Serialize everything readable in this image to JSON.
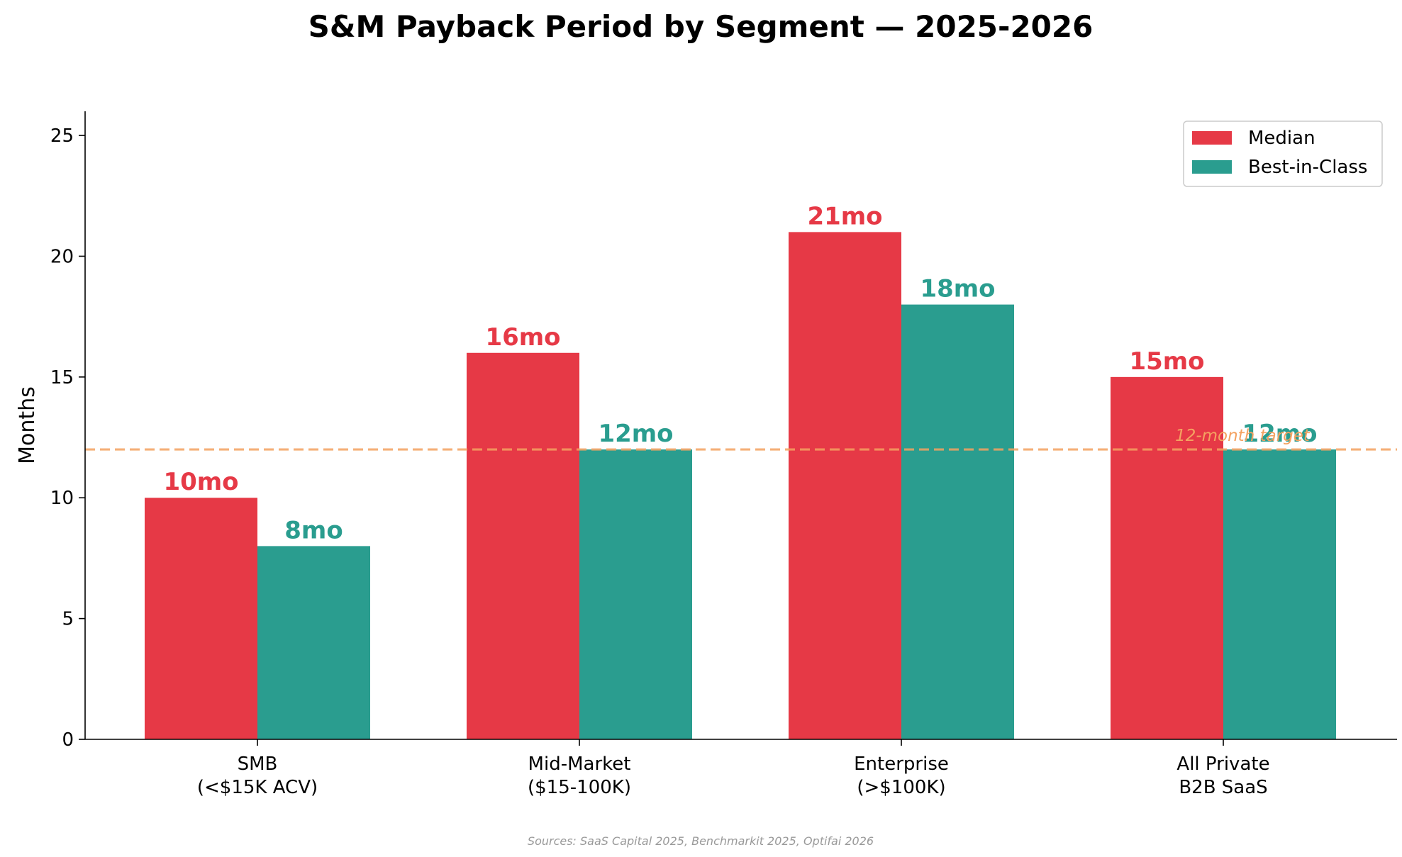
{
  "chart_data": {
    "type": "bar",
    "title": "S&M Payback Period by Segment — 2025-2026",
    "xlabel": "",
    "ylabel": "Months",
    "ylim": [
      0,
      26
    ],
    "yticks": [
      0,
      5,
      10,
      15,
      20,
      25
    ],
    "categories": [
      [
        "SMB",
        "(<$15K ACV)"
      ],
      [
        "Mid-Market",
        "($15-100K)"
      ],
      [
        "Enterprise",
        "(>$100K)"
      ],
      [
        "All Private",
        "B2B SaaS"
      ]
    ],
    "series": [
      {
        "name": "Median",
        "color": "#e63946",
        "values": [
          10,
          16,
          21,
          15
        ],
        "labels": [
          "10mo",
          "16mo",
          "21mo",
          "15mo"
        ]
      },
      {
        "name": "Best-in-Class",
        "color": "#2a9d8f",
        "values": [
          8,
          12,
          18,
          12
        ],
        "labels": [
          "8mo",
          "12mo",
          "18mo",
          "12mo"
        ]
      }
    ],
    "reference_line": {
      "value": 12,
      "label": "12-month target",
      "color": "#f4a261",
      "style": "dashed"
    },
    "legend": "top-right",
    "grid": false,
    "source_note": "Sources: SaaS Capital 2025, Benchmarkit 2025, Optifai 2026"
  }
}
